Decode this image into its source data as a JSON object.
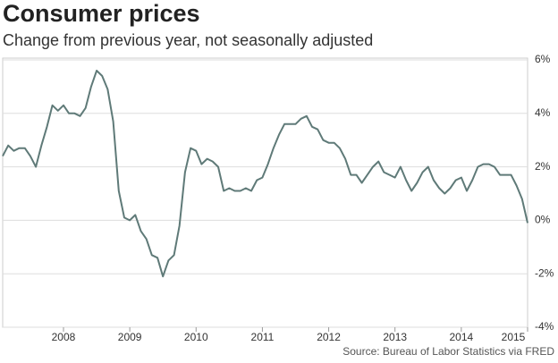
{
  "chart_data": {
    "type": "line",
    "title": "Consumer prices",
    "subtitle": "Change from previous year, not seasonally adjusted",
    "source": "Source: Bureau of Labor Statistics via FRED",
    "x": [
      2007.083,
      2007.167,
      2007.25,
      2007.333,
      2007.417,
      2007.5,
      2007.583,
      2007.667,
      2007.75,
      2007.833,
      2007.917,
      2008,
      2008.083,
      2008.167,
      2008.25,
      2008.333,
      2008.417,
      2008.5,
      2008.583,
      2008.667,
      2008.75,
      2008.833,
      2008.917,
      2009,
      2009.083,
      2009.167,
      2009.25,
      2009.333,
      2009.417,
      2009.5,
      2009.583,
      2009.667,
      2009.75,
      2009.833,
      2009.917,
      2010,
      2010.083,
      2010.167,
      2010.25,
      2010.333,
      2010.417,
      2010.5,
      2010.583,
      2010.667,
      2010.75,
      2010.833,
      2010.917,
      2011,
      2011.083,
      2011.167,
      2011.25,
      2011.333,
      2011.417,
      2011.5,
      2011.583,
      2011.667,
      2011.75,
      2011.833,
      2011.917,
      2012,
      2012.083,
      2012.167,
      2012.25,
      2012.333,
      2012.417,
      2012.5,
      2012.583,
      2012.667,
      2012.75,
      2012.833,
      2012.917,
      2013,
      2013.083,
      2013.167,
      2013.25,
      2013.333,
      2013.417,
      2013.5,
      2013.583,
      2013.667,
      2013.75,
      2013.833,
      2013.917,
      2014,
      2014.083,
      2014.167,
      2014.25,
      2014.333,
      2014.417,
      2014.5,
      2014.583,
      2014.667,
      2014.75,
      2014.833,
      2014.917,
      2015
    ],
    "series": [
      {
        "color": "#5f7a78",
        "values": [
          2.4,
          2.8,
          2.6,
          2.7,
          2.7,
          2.4,
          2.0,
          2.8,
          3.5,
          4.3,
          4.1,
          4.3,
          4.0,
          4.0,
          3.9,
          4.2,
          5.0,
          5.6,
          5.4,
          4.9,
          3.7,
          1.1,
          0.1,
          0.0,
          0.2,
          -0.4,
          -0.7,
          -1.3,
          -1.4,
          -2.1,
          -1.5,
          -1.3,
          -0.2,
          1.8,
          2.7,
          2.6,
          2.1,
          2.3,
          2.2,
          2.0,
          1.1,
          1.2,
          1.1,
          1.1,
          1.2,
          1.1,
          1.5,
          1.6,
          2.1,
          2.7,
          3.2,
          3.6,
          3.6,
          3.6,
          3.8,
          3.9,
          3.5,
          3.4,
          3.0,
          2.9,
          2.9,
          2.7,
          2.3,
          1.7,
          1.7,
          1.4,
          1.7,
          2.0,
          2.2,
          1.8,
          1.7,
          1.6,
          2.0,
          1.5,
          1.1,
          1.4,
          1.8,
          2.0,
          1.5,
          1.2,
          1.0,
          1.2,
          1.5,
          1.6,
          1.1,
          1.5,
          2.0,
          2.1,
          2.1,
          2.0,
          1.7,
          1.7,
          1.7,
          1.3,
          0.8,
          -0.1
        ]
      }
    ],
    "xlim": [
      2007.083,
      2015
    ],
    "xticks": [
      2008,
      2009,
      2010,
      2011,
      2012,
      2013,
      2014,
      2015
    ],
    "ylim": [
      -4,
      6
    ],
    "yticks": [
      {
        "value": -4,
        "label": "-4%"
      },
      {
        "value": -2,
        "label": "-2%"
      },
      {
        "value": 0,
        "label": "0%"
      },
      {
        "value": 2,
        "label": "2%"
      },
      {
        "value": 4,
        "label": "4%"
      },
      {
        "value": 6,
        "label": "6%"
      }
    ],
    "grid": true
  }
}
